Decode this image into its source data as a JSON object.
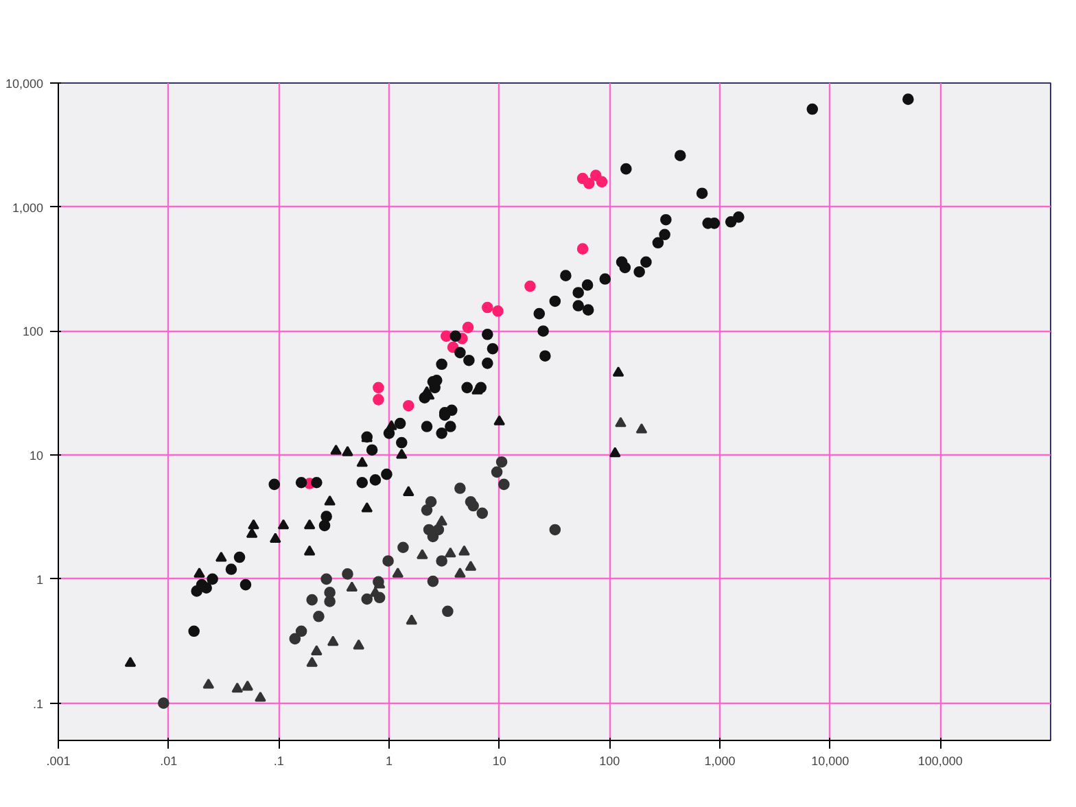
{
  "chart_data": {
    "type": "scatter",
    "log": "xy",
    "grid": true,
    "xlim": [
      0.001,
      1000000
    ],
    "ylim": [
      0.05,
      10000
    ],
    "xticks": [
      {
        "value": 0.001,
        "label": ".001"
      },
      {
        "value": 0.01,
        "label": ".01"
      },
      {
        "value": 0.1,
        "label": ".1"
      },
      1,
      10,
      100,
      {
        "value": 1000,
        "label": "1,000"
      },
      {
        "value": 10000,
        "label": "10,000"
      },
      {
        "value": 100000,
        "label": "100,000"
      }
    ],
    "yticks": [
      {
        "value": 0.1,
        "label": ".1"
      },
      1,
      10,
      100,
      {
        "value": 1000,
        "label": "1,000"
      },
      {
        "value": 10000,
        "label": "10,000"
      }
    ],
    "series": [
      {
        "color": "#ff1f6f",
        "marker": "circle",
        "x": [
          0.8,
          0.8,
          1.5,
          3.3,
          3.8,
          4.6,
          5.2,
          7.8,
          9.7,
          19,
          57,
          0.19,
          57,
          65,
          75,
          85
        ],
        "values": [
          35,
          28,
          25,
          91,
          74,
          87,
          107,
          155,
          145,
          230,
          460,
          5.9,
          1700,
          1550,
          1800,
          1600
        ]
      },
      {
        "color": "#111111",
        "marker": "circle",
        "x": [
          0.017,
          0.018,
          0.02,
          0.022,
          0.025,
          0.044,
          0.037,
          0.05,
          0.091,
          0.16,
          0.22,
          0.26,
          0.27,
          0.57,
          0.75,
          0.95,
          0.7,
          1.3,
          2.2,
          3,
          2.6,
          5.1,
          6.8,
          3.7,
          3.2,
          2.7,
          7.8,
          8.7,
          7.8,
          4,
          4.4,
          3,
          5.3,
          2.5,
          2.1,
          3.2,
          3.6,
          1.26,
          0.63,
          1.0,
          141,
          437,
          690,
          780,
          890,
          1260,
          1480,
          324,
          316,
          275,
          214,
          186,
          138,
          129,
          91,
          63,
          52,
          52,
          64,
          40,
          32,
          23,
          25,
          26,
          6900,
          51000
        ],
        "values": [
          0.38,
          0.8,
          0.9,
          0.85,
          1.0,
          1.5,
          1.2,
          0.9,
          5.8,
          6,
          6,
          2.7,
          3.2,
          6,
          6.3,
          7,
          11,
          12.6,
          17,
          15,
          35,
          35,
          35,
          23,
          22,
          40,
          94,
          72,
          55,
          91,
          67,
          54,
          58,
          39,
          29,
          21,
          17,
          18,
          14,
          15,
          2030,
          2600,
          1290,
          740,
          740,
          760,
          830,
          790,
          600,
          515,
          360,
          300,
          325,
          360,
          263,
          235,
          204,
          160,
          148,
          280,
          174,
          138,
          100,
          63,
          6160,
          7400
        ]
      },
      {
        "color": "#111111",
        "marker": "triangle",
        "x": [
          0.0045,
          0.019,
          0.03,
          0.059,
          0.057,
          0.11,
          0.093,
          0.19,
          0.19,
          0.29,
          0.33,
          0.42,
          0.57,
          0.63,
          1.05,
          1.3,
          1.5,
          2.2,
          0.63,
          10,
          2.3,
          6.3,
          120,
          112
        ],
        "values": [
          0.21,
          1.1,
          1.48,
          2.7,
          2.3,
          2.7,
          2.1,
          1.66,
          2.7,
          4.2,
          10.8,
          10.5,
          8.6,
          13.6,
          17,
          10,
          5,
          32,
          3.7,
          18.6,
          30,
          33,
          46,
          10.3
        ]
      },
      {
        "color": "#333333",
        "marker": "circle",
        "x": [
          0.009,
          0.14,
          0.16,
          0.2,
          0.29,
          0.23,
          0.29,
          0.27,
          0.42,
          0.63,
          0.8,
          0.82,
          0.98,
          1.34,
          2.2,
          2.3,
          2.5,
          2.8,
          2.4,
          3.0,
          3.4,
          4.4,
          5.5,
          5.8,
          7.0,
          9.5,
          10.5,
          11,
          2.5,
          32
        ],
        "values": [
          0.1,
          0.33,
          0.38,
          0.68,
          0.66,
          0.5,
          0.78,
          1.0,
          1.1,
          0.69,
          0.95,
          0.71,
          1.4,
          1.8,
          3.6,
          2.5,
          2.2,
          2.5,
          4.2,
          1.4,
          0.55,
          5.4,
          4.2,
          3.9,
          3.4,
          7.3,
          8.8,
          5.8,
          0.96,
          2.5
        ]
      },
      {
        "color": "#333333",
        "marker": "triangle",
        "x": [
          0.023,
          0.042,
          0.052,
          0.068,
          0.2,
          0.22,
          0.31,
          0.46,
          0.53,
          0.82,
          0.75,
          1.2,
          1.6,
          2.0,
          3.0,
          3.6,
          4.8,
          4.4,
          5.5,
          126,
          195
        ],
        "values": [
          0.14,
          0.13,
          0.135,
          0.11,
          0.21,
          0.26,
          0.31,
          0.85,
          0.29,
          0.9,
          0.77,
          1.1,
          0.46,
          1.55,
          2.9,
          1.6,
          1.66,
          1.1,
          1.25,
          18,
          16
        ]
      }
    ]
  }
}
